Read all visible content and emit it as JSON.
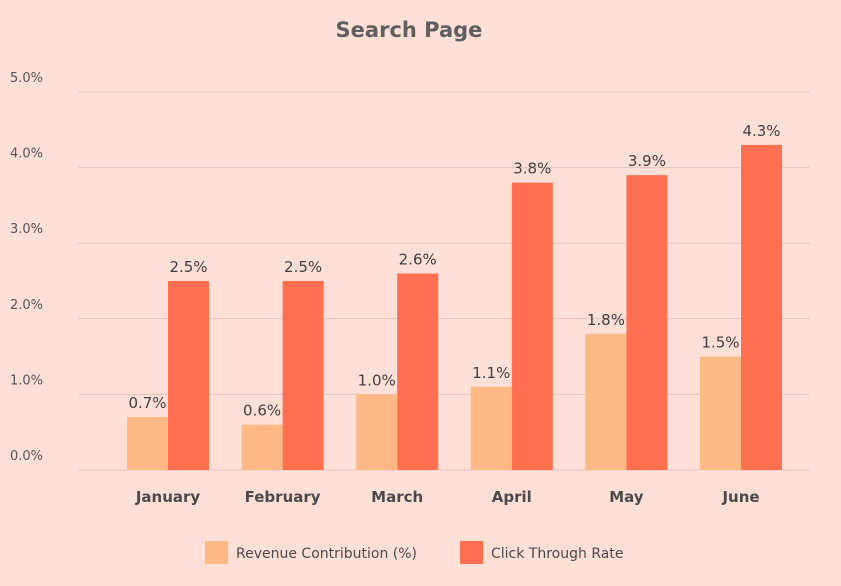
{
  "chart_data": {
    "type": "bar",
    "title": "Search Page",
    "categories": [
      "January",
      "February",
      "March",
      "April",
      "May",
      "June"
    ],
    "series": [
      {
        "name": "Revenue Contribution (%)",
        "color": "#ffb987",
        "values": [
          0.7,
          0.6,
          1.0,
          1.1,
          1.8,
          1.5
        ],
        "labels": [
          "0.7%",
          "0.6%",
          "1.0%",
          "1.1%",
          "1.8%",
          "1.5%"
        ]
      },
      {
        "name": "Click Through Rate",
        "color": "#ff6f50",
        "values": [
          2.5,
          2.5,
          2.6,
          3.8,
          3.9,
          4.3
        ],
        "labels": [
          "2.5%",
          "2.5%",
          "2.6%",
          "3.8%",
          "3.9%",
          "4.3%"
        ]
      }
    ],
    "y_ticks": [
      "0.0%",
      "1.0%",
      "2.0%",
      "3.0%",
      "4.0%",
      "5.0%"
    ],
    "ylim": [
      0,
      5
    ],
    "grid": true,
    "legend_position": "bottom"
  },
  "colors": {
    "background": "#ffdfd6",
    "gridline": "#e2c4bc"
  }
}
